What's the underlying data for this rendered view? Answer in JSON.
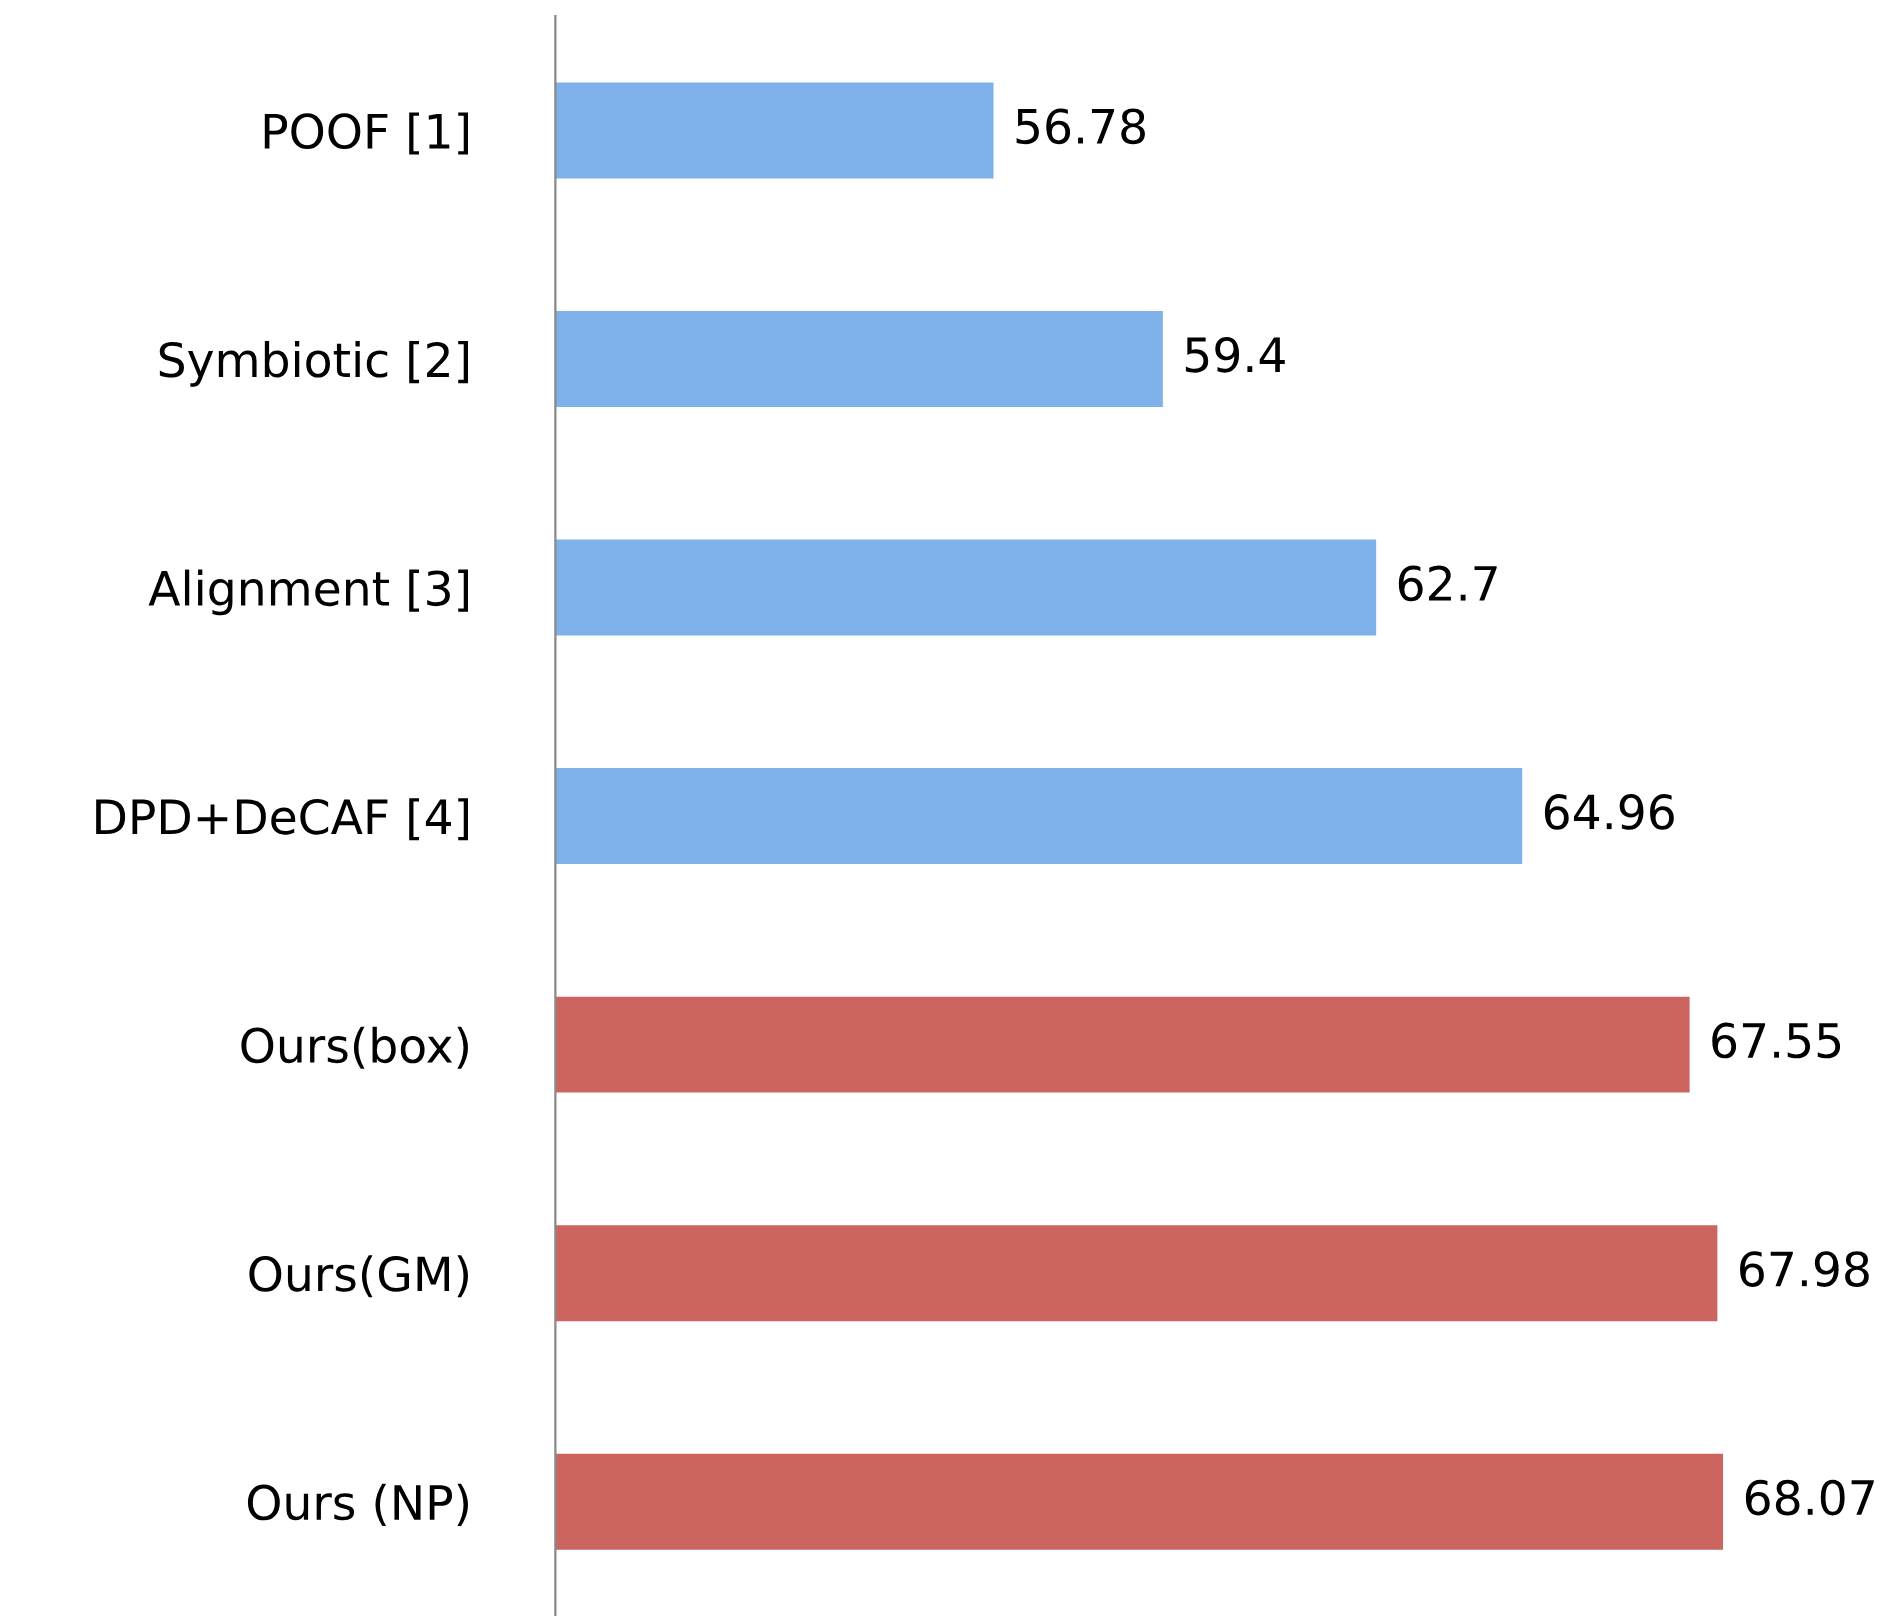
{
  "chart_data": {
    "type": "bar",
    "orientation": "horizontal",
    "categories": [
      "POOF [1]",
      "Symbiotic [2]",
      "Alignment [3]",
      "DPD+DeCAF [4]",
      "Ours(box)",
      "Ours(GM)",
      "Ours (NP)"
    ],
    "values": [
      56.78,
      59.4,
      62.7,
      64.96,
      67.55,
      67.98,
      68.07
    ],
    "colors": [
      "#7fb2ea",
      "#7fb2ea",
      "#7fb2ea",
      "#7fb2ea",
      "#cc645f",
      "#cc645f",
      "#cc645f"
    ],
    "xlim": [
      50,
      68.07
    ],
    "tick_labels": "y",
    "data_labels": true,
    "grid": false,
    "legend": false
  }
}
